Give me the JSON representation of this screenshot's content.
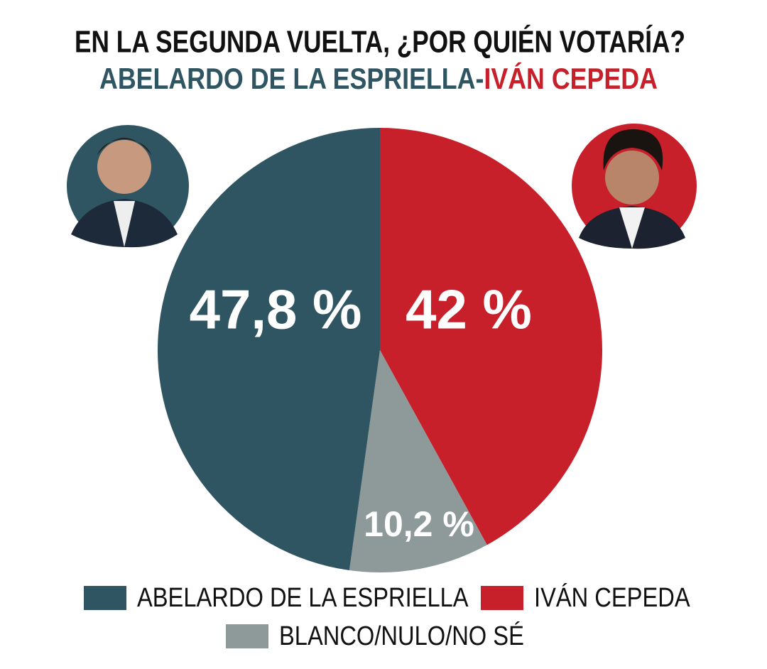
{
  "chart_data": {
    "type": "pie",
    "title": "EN LA SEGUNDA VUELTA, ¿POR QUIÉN VOTARÍA?",
    "subtitle_parts": [
      {
        "text": "ABELARDO DE LA ESPRIELLA",
        "color": "#2e5561"
      },
      {
        "text": "-",
        "color": "#2e5561"
      },
      {
        "text": "IVÁN CEPEDA",
        "color": "#c8202a"
      }
    ],
    "categories": [
      "IVÁN CEPEDA",
      "BLANCO/NULO/NO SÉ",
      "ABELARDO DE LA ESPRIELLA"
    ],
    "values": [
      42,
      10.2,
      47.8
    ],
    "value_labels": [
      "42 %",
      "10,2 %",
      "47,8 %"
    ],
    "colors": [
      "#c8202a",
      "#8e9a9a",
      "#2e5561"
    ],
    "start_angle": "top",
    "direction": "clockwise"
  }
}
